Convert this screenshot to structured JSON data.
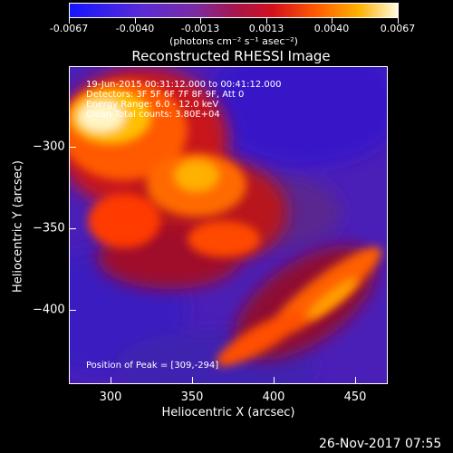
{
  "colorbar": {
    "ticks": [
      "-0.0067",
      "-0.0040",
      "-0.0013",
      "0.0013",
      "0.0040",
      "0.0067"
    ],
    "units_label": "(photons cm⁻² s⁻¹ asec⁻²)"
  },
  "plot": {
    "title": "Reconstructed RHESSI Image",
    "xlabel": "Heliocentric X (arcsec)",
    "ylabel": "Heliocentric Y (arcsec)",
    "xticks": [
      "300",
      "350",
      "400",
      "450"
    ],
    "yticks": [
      "−300",
      "−350",
      "−400"
    ]
  },
  "annotations": {
    "time": "19-Jun-2015 00:31:12.000 to 00:41:12.000",
    "detectors": "Detectors: 3F 5F 6F 7F 8F 9F, Att 0",
    "energy": "Energy Range: 6.0 - 12.0 keV",
    "clean": "Clean    Total counts: 3.80E+04",
    "peak": "Position of Peak = [309,-294]"
  },
  "footer": {
    "timestamp": "26-Nov-2017 07:55"
  }
}
